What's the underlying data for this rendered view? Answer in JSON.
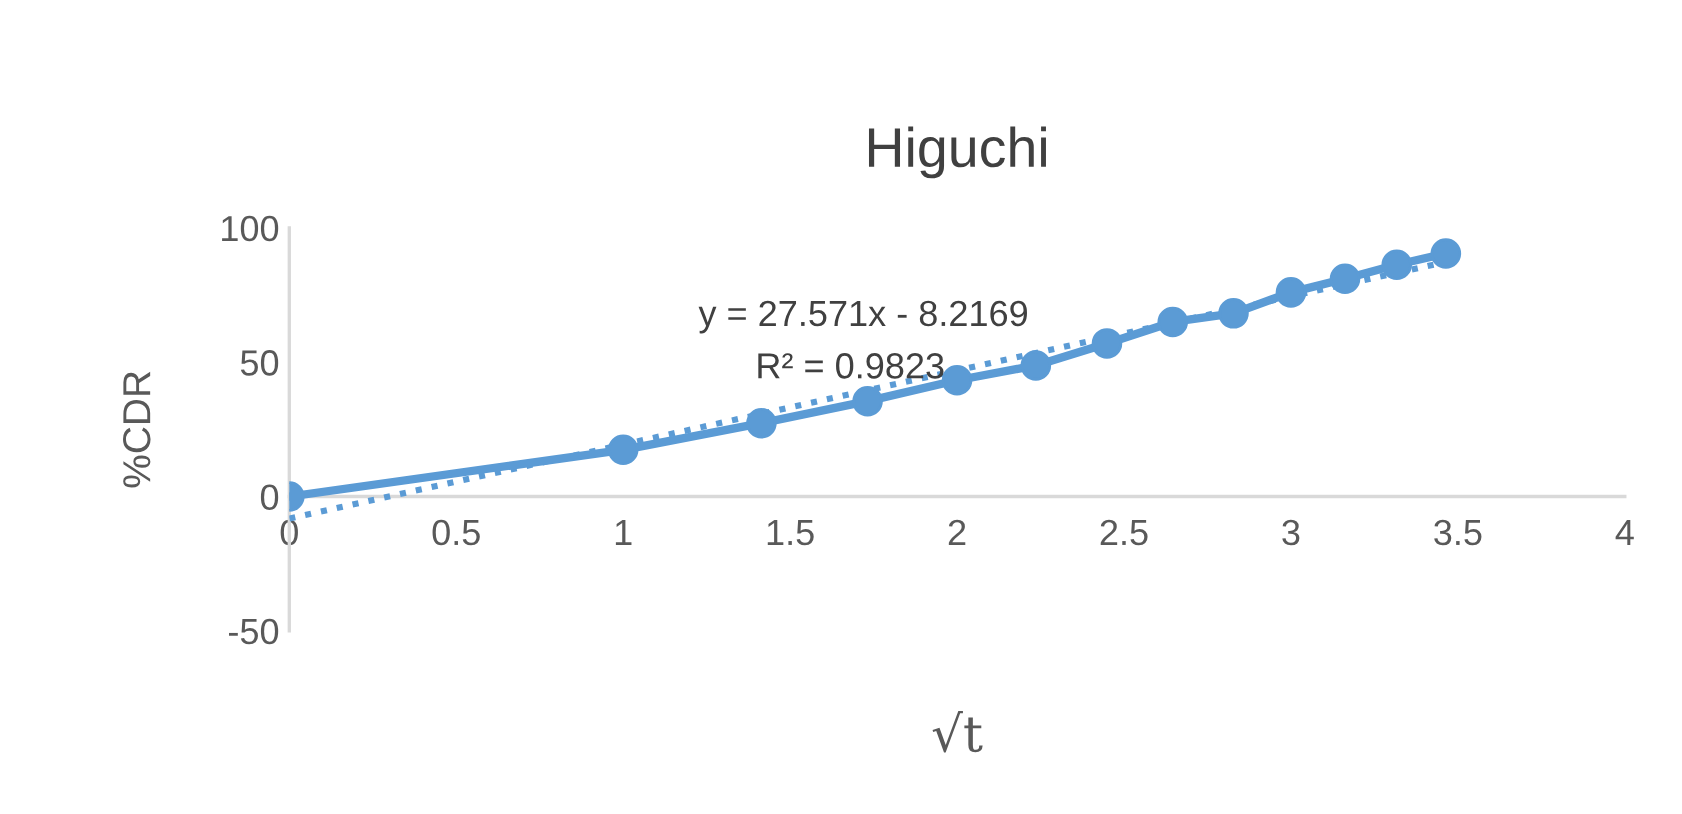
{
  "chart_data": {
    "type": "line",
    "title": "Higuchi",
    "xlabel": "√t",
    "ylabel": "%CDR",
    "xlim": [
      0,
      4
    ],
    "xticks": [
      0,
      0.5,
      1,
      1.5,
      2,
      2.5,
      3,
      3.5,
      4
    ],
    "ylim": [
      -50,
      100
    ],
    "yticks": [
      -50,
      0,
      50,
      100
    ],
    "grid": false,
    "marker": "circle",
    "line_style": "solid",
    "annotations": [
      "y = 27.571x - 8.2169",
      "R² = 0.9823"
    ],
    "series": [
      {
        "color": "#5b9bd5",
        "x": [
          0,
          1,
          1.414,
          1.732,
          2,
          2.236,
          2.449,
          2.646,
          2.828,
          3,
          3.162,
          3.317,
          3.464
        ],
        "values": [
          0,
          17.4,
          27.3,
          35.5,
          43.3,
          48.8,
          57,
          65,
          68.2,
          76,
          81.1,
          86.3,
          90.5
        ]
      },
      {
        "type": "line",
        "color": "#5b9bd5",
        "marker": "none",
        "line_style": "dotted",
        "x": [
          0,
          3.464
        ],
        "values": [
          -8.2,
          87.3
        ]
      }
    ]
  }
}
